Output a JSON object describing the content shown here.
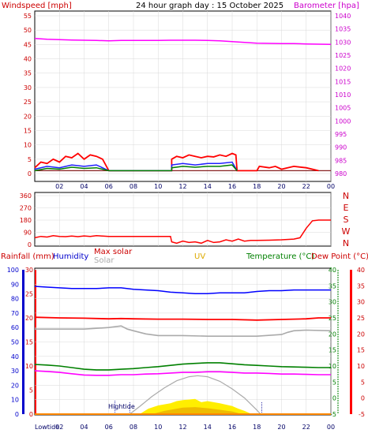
{
  "title": "24 hour graph day : 15 October 2025",
  "colors": {
    "wind": "#ff0000",
    "barometer": "#ff00ff",
    "direction": "#ff0000",
    "rain": "#ff0000",
    "humidity": "#0000ff",
    "maxsolar": "#cc0000",
    "solar": "#aaaaaa",
    "uv": "#ddaa00",
    "temperature": "#008000",
    "dewpoint": "#ff0000",
    "grid": "#d8d8d8"
  },
  "chart_data": [
    {
      "type": "line",
      "name": "wind-barometer",
      "ylabel_left": "Windspeed [mph]",
      "ylabel_right": "Barometer [hpa]",
      "x_ticks": [
        "02",
        "04",
        "06",
        "08",
        "10",
        "12",
        "14",
        "16",
        "18",
        "20",
        "22",
        "00"
      ],
      "y_left_ticks": [
        "0",
        "5",
        "10",
        "15",
        "20",
        "25",
        "30",
        "35",
        "40",
        "45",
        "50",
        "55"
      ],
      "y_right_ticks": [
        "980",
        "985",
        "990",
        "995",
        "1000",
        "1005",
        "1010",
        "1015",
        "1020",
        "1025",
        "1030",
        "1035",
        "1040"
      ],
      "ylim_left": [
        0,
        55
      ],
      "ylim_right": [
        980,
        1040
      ],
      "barometer_hpa": [
        [
          0,
          1031.4
        ],
        [
          1,
          1031.1
        ],
        [
          2,
          1030.9
        ],
        [
          3,
          1030.8
        ],
        [
          4,
          1030.7
        ],
        [
          5,
          1030.6
        ],
        [
          6,
          1030.5
        ],
        [
          7,
          1030.6
        ],
        [
          8,
          1030.6
        ],
        [
          9,
          1030.6
        ],
        [
          10,
          1030.6
        ],
        [
          11,
          1030.7
        ],
        [
          12,
          1030.7
        ],
        [
          13,
          1030.7
        ],
        [
          14,
          1030.6
        ],
        [
          15,
          1030.5
        ],
        [
          16,
          1030.2
        ],
        [
          17,
          1029.9
        ],
        [
          18,
          1029.6
        ],
        [
          19,
          1029.5
        ],
        [
          20,
          1029.4
        ],
        [
          21,
          1029.4
        ],
        [
          22,
          1029.3
        ],
        [
          23,
          1029.2
        ],
        [
          24,
          1029.1
        ]
      ],
      "wind_baseline_mph": 1,
      "gust_mph": [
        [
          0,
          2
        ],
        [
          0.5,
          4
        ],
        [
          1,
          3.5
        ],
        [
          1.5,
          5
        ],
        [
          2,
          4
        ],
        [
          2.5,
          6
        ],
        [
          3,
          5.5
        ],
        [
          3.5,
          7
        ],
        [
          4,
          5
        ],
        [
          4.5,
          6.5
        ],
        [
          5,
          6
        ],
        [
          5.5,
          5
        ],
        [
          6,
          1
        ],
        [
          11.1,
          1
        ],
        [
          11.1,
          5
        ],
        [
          11.5,
          6
        ],
        [
          12,
          5.5
        ],
        [
          12.5,
          6.5
        ],
        [
          13,
          6
        ],
        [
          13.5,
          5.5
        ],
        [
          14,
          6
        ],
        [
          14.5,
          5.8
        ],
        [
          15,
          6.5
        ],
        [
          15.5,
          6
        ],
        [
          16,
          7
        ],
        [
          16.3,
          6.5
        ],
        [
          16.4,
          1
        ],
        [
          18,
          1
        ],
        [
          18.2,
          2.5
        ],
        [
          19,
          2
        ],
        [
          19.5,
          2.5
        ],
        [
          20,
          1.5
        ],
        [
          21,
          2.5
        ],
        [
          22,
          2
        ],
        [
          22.5,
          1.5
        ],
        [
          23,
          1
        ]
      ],
      "avg_mph": [
        [
          0,
          1.5
        ],
        [
          1,
          2.5
        ],
        [
          2,
          2
        ],
        [
          3,
          3
        ],
        [
          4,
          2.5
        ],
        [
          5,
          3
        ],
        [
          6,
          1
        ],
        [
          11.1,
          1
        ],
        [
          11.1,
          3
        ],
        [
          12,
          3.5
        ],
        [
          13,
          3
        ],
        [
          14,
          3.5
        ],
        [
          15,
          3.5
        ],
        [
          16,
          4
        ],
        [
          16.4,
          1
        ]
      ],
      "wind_mph": [
        [
          0,
          1
        ],
        [
          1,
          1.8
        ],
        [
          2,
          1.5
        ],
        [
          3,
          2.2
        ],
        [
          4,
          1.8
        ],
        [
          5,
          2
        ],
        [
          6,
          1
        ],
        [
          11.1,
          1
        ],
        [
          11.1,
          2
        ],
        [
          12,
          2.5
        ],
        [
          13,
          2.2
        ],
        [
          14,
          2.5
        ],
        [
          15,
          2.5
        ],
        [
          16,
          3
        ],
        [
          16.4,
          1
        ]
      ]
    },
    {
      "type": "line",
      "name": "wind-direction",
      "y_left_ticks": [
        "0",
        "90",
        "180",
        "270",
        "360"
      ],
      "y_right_labels": [
        "N",
        "W",
        "S",
        "E",
        "N"
      ],
      "ylim": [
        0,
        360
      ],
      "direction_deg": [
        [
          0,
          50
        ],
        [
          0.5,
          60
        ],
        [
          1,
          55
        ],
        [
          1.5,
          65
        ],
        [
          2,
          60
        ],
        [
          2.5,
          58
        ],
        [
          3,
          62
        ],
        [
          3.5,
          58
        ],
        [
          4,
          63
        ],
        [
          4.5,
          60
        ],
        [
          5,
          65
        ],
        [
          5.5,
          62
        ],
        [
          6,
          60
        ],
        [
          7,
          60
        ],
        [
          8,
          60
        ],
        [
          9,
          60
        ],
        [
          10,
          60
        ],
        [
          11,
          60
        ],
        [
          11.1,
          20
        ],
        [
          11.5,
          10
        ],
        [
          12,
          25
        ],
        [
          12.5,
          15
        ],
        [
          13,
          20
        ],
        [
          13.5,
          10
        ],
        [
          14,
          30
        ],
        [
          14.5,
          15
        ],
        [
          15,
          20
        ],
        [
          15.5,
          35
        ],
        [
          16,
          25
        ],
        [
          16.5,
          40
        ],
        [
          17,
          25
        ],
        [
          17.5,
          30
        ],
        [
          18,
          30
        ],
        [
          19,
          32
        ],
        [
          20,
          35
        ],
        [
          21,
          40
        ],
        [
          21.5,
          50
        ],
        [
          22,
          120
        ],
        [
          22.5,
          175
        ],
        [
          23,
          180
        ],
        [
          24,
          180
        ]
      ]
    },
    {
      "type": "line",
      "name": "rain-humidity-solar-temperature",
      "header": {
        "rain": "Rainfall (mm)",
        "humidity": "Humidity",
        "maxsolar": "Max solar",
        "solar": "Solar",
        "uv": "UV",
        "temperature": "Temperature (°C)",
        "dewpoint": "Dew Point (°C)"
      },
      "x_ticks": [
        "02",
        "04",
        "06",
        "08",
        "10",
        "12",
        "14",
        "16",
        "18",
        "20",
        "22",
        "00"
      ],
      "y_humidity_ticks": [
        "0",
        "10",
        "20",
        "30",
        "40",
        "50",
        "60",
        "70",
        "80",
        "90",
        "100"
      ],
      "y_rain_ticks": [
        "0",
        "5",
        "10",
        "15",
        "20",
        "25",
        "30"
      ],
      "y_temp_ticks": [
        "-5",
        "0",
        "5",
        "10",
        "15",
        "20",
        "25",
        "30",
        "35",
        "40"
      ],
      "y_dew_ticks": [
        "-5",
        "0",
        "5",
        "10",
        "15",
        "20",
        "25",
        "30",
        "35",
        "40"
      ],
      "humidity_pct": [
        [
          0,
          88.5
        ],
        [
          1,
          88
        ],
        [
          2,
          87.5
        ],
        [
          3,
          87
        ],
        [
          4,
          87
        ],
        [
          5,
          87
        ],
        [
          6,
          87.5
        ],
        [
          7,
          87.5
        ],
        [
          8,
          86.5
        ],
        [
          9,
          86
        ],
        [
          10,
          85.5
        ],
        [
          11,
          84.5
        ],
        [
          12,
          84
        ],
        [
          13,
          83.5
        ],
        [
          14,
          83.5
        ],
        [
          15,
          84
        ],
        [
          16,
          84
        ],
        [
          17,
          84
        ],
        [
          18,
          85
        ],
        [
          19,
          85.5
        ],
        [
          20,
          85.5
        ],
        [
          21,
          86
        ],
        [
          22,
          86
        ],
        [
          23,
          86
        ],
        [
          24,
          86
        ]
      ],
      "temperature_c": [
        [
          0,
          10.5
        ],
        [
          1,
          10.3
        ],
        [
          2,
          10
        ],
        [
          3,
          9.5
        ],
        [
          4,
          9
        ],
        [
          5,
          8.8
        ],
        [
          6,
          8.8
        ],
        [
          7,
          9
        ],
        [
          8,
          9.2
        ],
        [
          9,
          9.5
        ],
        [
          10,
          9.8
        ],
        [
          11,
          10.2
        ],
        [
          12,
          10.6
        ],
        [
          13,
          10.8
        ],
        [
          14,
          11
        ],
        [
          15,
          11
        ],
        [
          16,
          10.7
        ],
        [
          17,
          10.4
        ],
        [
          18,
          10.2
        ],
        [
          19,
          10
        ],
        [
          20,
          9.8
        ],
        [
          21,
          9.7
        ],
        [
          22,
          9.6
        ],
        [
          23,
          9.5
        ],
        [
          24,
          9.5
        ]
      ],
      "dewpoint_c": [
        [
          0,
          8.5
        ],
        [
          1,
          8.3
        ],
        [
          2,
          8
        ],
        [
          3,
          7.6
        ],
        [
          4,
          7.2
        ],
        [
          5,
          7.1
        ],
        [
          6,
          7.1
        ],
        [
          7,
          7.3
        ],
        [
          8,
          7.3
        ],
        [
          9,
          7.5
        ],
        [
          10,
          7.6
        ],
        [
          11,
          7.8
        ],
        [
          12,
          8
        ],
        [
          13,
          8
        ],
        [
          14,
          8.2
        ],
        [
          15,
          8.2
        ],
        [
          16,
          8
        ],
        [
          17,
          7.8
        ],
        [
          18,
          7.8
        ],
        [
          19,
          7.7
        ],
        [
          20,
          7.5
        ],
        [
          21,
          7.5
        ],
        [
          22,
          7.4
        ],
        [
          23,
          7.3
        ],
        [
          24,
          7.3
        ]
      ],
      "maxtemp_ref_c": [
        [
          0,
          25.2
        ],
        [
          2,
          25
        ],
        [
          4,
          24.9
        ],
        [
          6,
          24.7
        ],
        [
          7,
          24.8
        ],
        [
          8,
          24.7
        ],
        [
          10,
          24.6
        ],
        [
          12,
          24.6
        ],
        [
          14,
          24.5
        ],
        [
          16,
          24.5
        ],
        [
          18,
          24.3
        ],
        [
          20,
          24.5
        ],
        [
          22,
          24.7
        ],
        [
          23,
          25
        ],
        [
          24,
          25
        ]
      ],
      "mintemp_ref_c": [
        [
          0,
          21.5
        ],
        [
          2,
          21.5
        ],
        [
          4,
          21.5
        ],
        [
          6,
          22
        ],
        [
          7,
          22.5
        ],
        [
          7.5,
          21.5
        ],
        [
          8,
          21
        ],
        [
          9,
          20
        ],
        [
          10,
          19.5
        ],
        [
          12,
          19.5
        ],
        [
          14,
          19.3
        ],
        [
          16,
          19.3
        ],
        [
          18,
          19.3
        ],
        [
          20,
          19.8
        ],
        [
          20.5,
          20.5
        ],
        [
          21,
          21
        ],
        [
          22,
          21.2
        ],
        [
          24,
          21
        ]
      ],
      "maxsolar_curve": [
        [
          7.7,
          0
        ],
        [
          8.5,
          1.5
        ],
        [
          9.5,
          3.5
        ],
        [
          10.5,
          5.2
        ],
        [
          11.5,
          6.6
        ],
        [
          12.5,
          7.4
        ],
        [
          13.2,
          7.6
        ],
        [
          14,
          7.4
        ],
        [
          15,
          6.5
        ],
        [
          16,
          5
        ],
        [
          17,
          3.2
        ],
        [
          18,
          0.8
        ],
        [
          18.3,
          0
        ]
      ],
      "solar_fill": [
        [
          8.5,
          0
        ],
        [
          9.2,
          1
        ],
        [
          10,
          1.6
        ],
        [
          11,
          2
        ],
        [
          11.5,
          2.4
        ],
        [
          12,
          2.6
        ],
        [
          13,
          2.8
        ],
        [
          13.5,
          2.2
        ],
        [
          14,
          2.4
        ],
        [
          15,
          2
        ],
        [
          16,
          1.5
        ],
        [
          16.5,
          1
        ],
        [
          17,
          0.6
        ],
        [
          17.6,
          0
        ]
      ],
      "uv_fill": [
        [
          9.5,
          0
        ],
        [
          10.5,
          0.6
        ],
        [
          11.5,
          1
        ],
        [
          12,
          1.2
        ],
        [
          13,
          1.3
        ],
        [
          14,
          1.1
        ],
        [
          15,
          0.8
        ],
        [
          16,
          0.5
        ],
        [
          16.8,
          0
        ]
      ],
      "lowtide_label": "Lowtide",
      "hightide_label": "Hightide",
      "tide_events_h": [
        7.7,
        18.4
      ],
      "hightide_h": 6.5
    }
  ]
}
